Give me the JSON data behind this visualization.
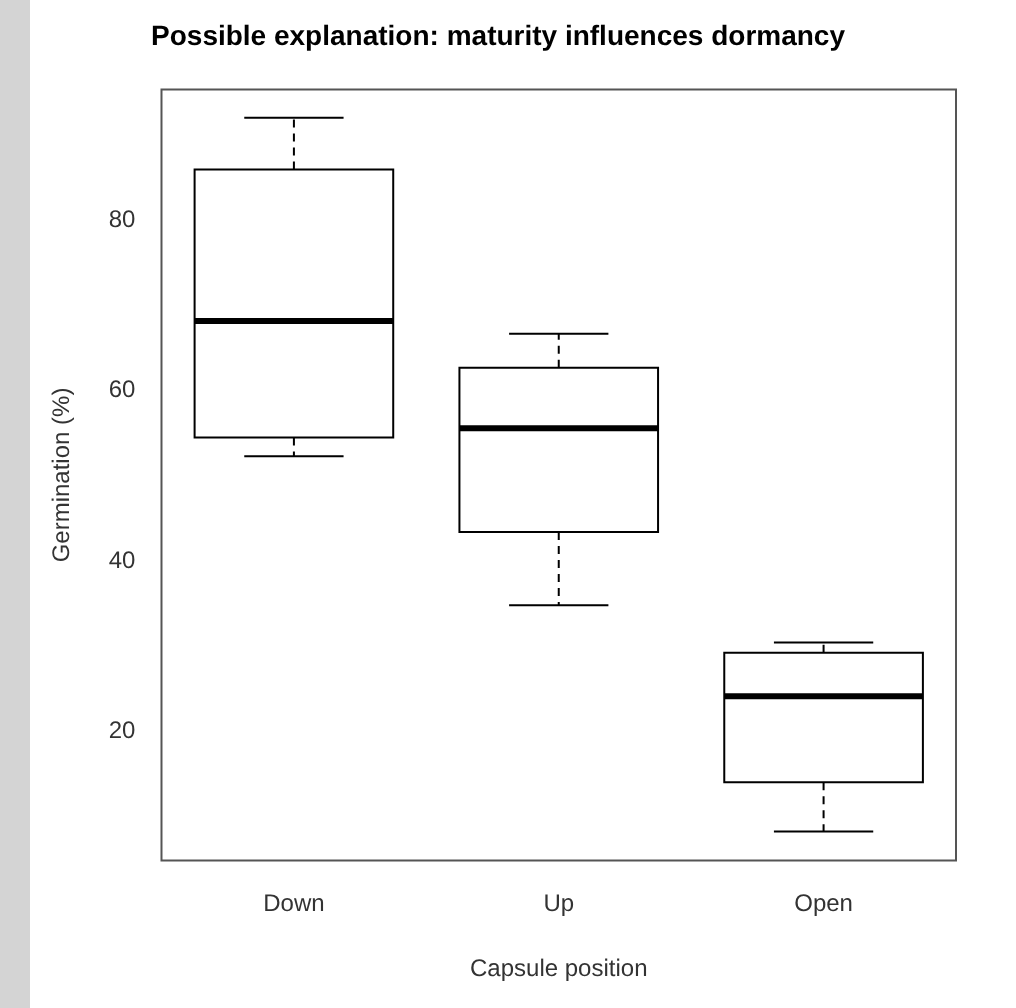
{
  "chart_data": {
    "type": "box",
    "title": "Possible explanation: maturity influences dormancy",
    "xlabel": "Capsule position",
    "ylabel": "Germination (%)",
    "categories": [
      "Down",
      "Up",
      "Open"
    ],
    "boxes": [
      {
        "low": 52.3,
        "q1": 54.5,
        "median": 68.2,
        "q3": 86.0,
        "high": 92.1
      },
      {
        "low": 34.8,
        "q1": 43.4,
        "median": 55.6,
        "q3": 62.7,
        "high": 66.7
      },
      {
        "low": 8.2,
        "q1": 14.0,
        "median": 24.1,
        "q3": 29.2,
        "high": 30.4
      }
    ],
    "color": "#000000",
    "ylim": [
      4.8,
      95.4
    ],
    "yticks": [
      20,
      40,
      60,
      80
    ]
  }
}
